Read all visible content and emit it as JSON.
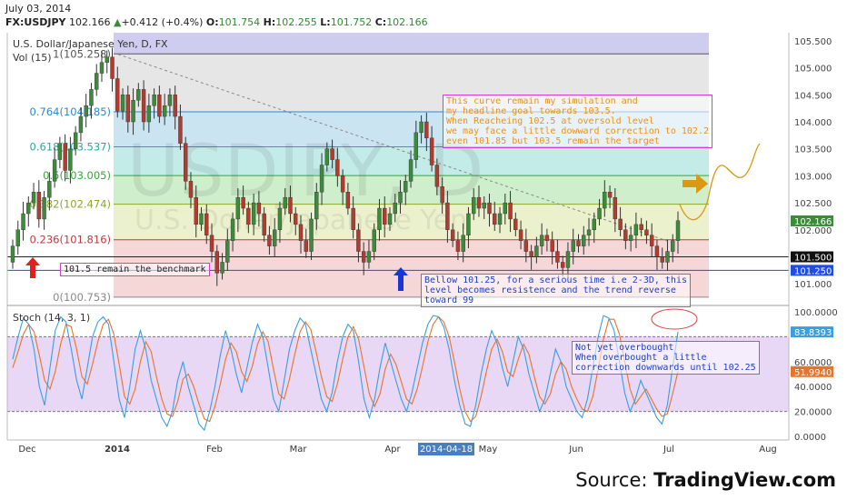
{
  "header": {
    "date": "July 03, 2014",
    "symbol": "FX:USDJPY",
    "last": "102.166",
    "change": "+0.412 (+0.4%)",
    "o_label": "O:",
    "o_val": "101.754",
    "h_label": "H:",
    "h_val": "102.255",
    "l_label": "L:",
    "l_val": "101.752",
    "c_label": "C:",
    "c_val": "102.166"
  },
  "instrument_label": "U.S. Dollar/Japanese Yen, D, FX",
  "vol_label": "Vol (15)",
  "watermark_big": "USDJPY, D",
  "watermark_small": "U.S. Dollar/Japanese Yen",
  "stoch_label": "Stoch (14, 3, 1)",
  "source": {
    "prefix": "Source: ",
    "brand": "TradingView.com"
  },
  "notes": {
    "top": "This curve remain my simulation and\nmy headline goal towards 103.5.\nWhen Reacheing 102.5 at oversold level\nwe may face a little dowward correction to 102.2\neven 101.85 but 103.5 remain the target",
    "benchmark": "101.5 remain the benchmark",
    "bellow": "Bellow 101.25, for a serious time i.e 2-3D, this\nlevel becomes resistence and the trend reverse\ntoward 99",
    "stoch": "Not yet overbought\nWhen overbought a little\ncorrection downwards until 102.25"
  },
  "colors": {
    "up": "#3d8a3d",
    "down": "#b33a2e",
    "stoch_k": "#3a9ee0",
    "stoch_d": "#e8742a",
    "arrow_red": "#e02020",
    "arrow_blue": "#1a35d8",
    "arrow_gold": "#d99a12",
    "note_text_orange": "#e8921a",
    "note_text_blue": "#2040c0",
    "price_badge": "#3d8a3d",
    "level_blue": "#1f4de0",
    "stoch_last": "#3a9ee0",
    "stoch_d_last": "#e8742a"
  },
  "chart_data": [
    {
      "type": "candlestick",
      "title": "U.S. Dollar/Japanese Yen, D, FX",
      "x_ticks": [
        "Dec",
        "2014",
        "Feb",
        "Mar",
        "Apr",
        "2014-04-18",
        "May",
        "Jun",
        "Jul",
        "Aug"
      ],
      "y_ticks": [
        "101.000",
        "101.500",
        "102.000",
        "102.500",
        "103.000",
        "103.500",
        "104.000",
        "104.500",
        "105.000",
        "105.500"
      ],
      "ylim": [
        100.65,
        105.65
      ],
      "fib_levels": [
        {
          "label": "1(105.258)",
          "value": 105.258
        },
        {
          "label": "0.764(104.185)",
          "value": 104.185
        },
        {
          "label": "0.618(103.537)",
          "value": 103.537
        },
        {
          "label": "0.5(103.005)",
          "value": 103.005
        },
        {
          "label": "0.382(102.474)",
          "value": 102.474
        },
        {
          "label": "0.236(101.816)",
          "value": 101.816
        },
        {
          "label": "0(100.753)",
          "value": 100.753
        }
      ],
      "last_price_label": "102.166",
      "last_price": 102.166,
      "h_levels": [
        {
          "label": "101.500",
          "value": 101.5
        },
        {
          "label": "101.250",
          "value": 101.25
        }
      ],
      "close_series": [
        101.7,
        102.0,
        102.3,
        102.5,
        102.7,
        102.2,
        102.6,
        102.9,
        103.3,
        103.6,
        103.1,
        103.5,
        103.8,
        104.1,
        104.3,
        104.6,
        104.9,
        105.1,
        105.2,
        104.8,
        104.2,
        104.5,
        104.0,
        104.4,
        104.6,
        104.0,
        104.3,
        104.5,
        104.1,
        104.3,
        104.5,
        104.1,
        103.6,
        102.9,
        102.6,
        102.1,
        102.3,
        101.9,
        101.6,
        101.2,
        101.4,
        101.8,
        102.2,
        102.6,
        102.4,
        102.1,
        102.5,
        102.3,
        101.9,
        101.7,
        102.0,
        102.4,
        102.6,
        102.3,
        102.1,
        101.8,
        101.6,
        102.2,
        102.7,
        103.2,
        103.5,
        103.3,
        103.0,
        102.7,
        102.4,
        102.0,
        101.6,
        101.4,
        101.6,
        102.0,
        102.4,
        102.1,
        102.3,
        102.5,
        102.7,
        102.9,
        103.3,
        103.8,
        104.0,
        103.7,
        103.2,
        102.8,
        102.5,
        102.0,
        101.8,
        101.6,
        101.9,
        102.3,
        102.6,
        102.4,
        102.5,
        102.3,
        102.1,
        102.3,
        102.5,
        102.2,
        102.0,
        101.8,
        101.6,
        101.5,
        101.7,
        101.9,
        101.8,
        101.6,
        101.4,
        101.3,
        101.6,
        101.8,
        101.7,
        101.9,
        102.0,
        102.2,
        102.4,
        102.7,
        102.6,
        102.2,
        102.0,
        101.8,
        101.9,
        102.1,
        102.0,
        101.9,
        101.7,
        101.5,
        101.4,
        101.6,
        101.8,
        102.17
      ],
      "stoch_ylim": [
        0,
        100
      ],
      "stoch_y_ticks": [
        "0.0000",
        "20.0000",
        "40.0000",
        "60.0000",
        "100.0000"
      ],
      "stoch_k_last": "83.8393",
      "stoch_d_last": "51.9940",
      "stoch_bands": [
        20,
        80
      ],
      "stoch_k": [
        62,
        80,
        95,
        90,
        70,
        40,
        25,
        55,
        85,
        96,
        92,
        70,
        45,
        30,
        55,
        80,
        92,
        96,
        90,
        60,
        30,
        15,
        40,
        70,
        85,
        70,
        45,
        30,
        15,
        8,
        20,
        45,
        60,
        40,
        25,
        10,
        5,
        20,
        40,
        65,
        85,
        70,
        50,
        35,
        55,
        75,
        90,
        80,
        55,
        30,
        20,
        45,
        70,
        85,
        95,
        90,
        70,
        50,
        30,
        20,
        35,
        60,
        80,
        90,
        85,
        60,
        30,
        15,
        30,
        55,
        75,
        60,
        45,
        30,
        20,
        35,
        55,
        75,
        90,
        97,
        96,
        88,
        70,
        45,
        25,
        10,
        8,
        25,
        50,
        70,
        85,
        75,
        55,
        40,
        60,
        80,
        70,
        50,
        35,
        20,
        30,
        50,
        70,
        60,
        40,
        30,
        20,
        15,
        30,
        55,
        80,
        97,
        95,
        85,
        60,
        35,
        20,
        30,
        45,
        35,
        25,
        15,
        10,
        25,
        55,
        84
      ],
      "stoch_d": [
        55,
        68,
        82,
        90,
        84,
        65,
        45,
        38,
        52,
        74,
        90,
        88,
        70,
        48,
        42,
        58,
        76,
        90,
        94,
        82,
        58,
        32,
        26,
        38,
        60,
        76,
        68,
        48,
        30,
        18,
        16,
        28,
        46,
        50,
        40,
        26,
        14,
        12,
        24,
        42,
        62,
        75,
        68,
        52,
        44,
        56,
        74,
        84,
        76,
        54,
        34,
        30,
        46,
        66,
        84,
        92,
        86,
        68,
        48,
        32,
        28,
        42,
        62,
        80,
        88,
        78,
        56,
        34,
        24,
        34,
        54,
        66,
        58,
        44,
        30,
        26,
        38,
        56,
        76,
        90,
        96,
        92,
        80,
        60,
        38,
        20,
        12,
        16,
        32,
        52,
        70,
        78,
        68,
        52,
        48,
        62,
        74,
        66,
        48,
        32,
        26,
        34,
        50,
        60,
        54,
        40,
        30,
        22,
        20,
        32,
        54,
        78,
        94,
        94,
        82,
        60,
        38,
        26,
        32,
        38,
        30,
        22,
        16,
        18,
        34,
        52
      ]
    }
  ]
}
